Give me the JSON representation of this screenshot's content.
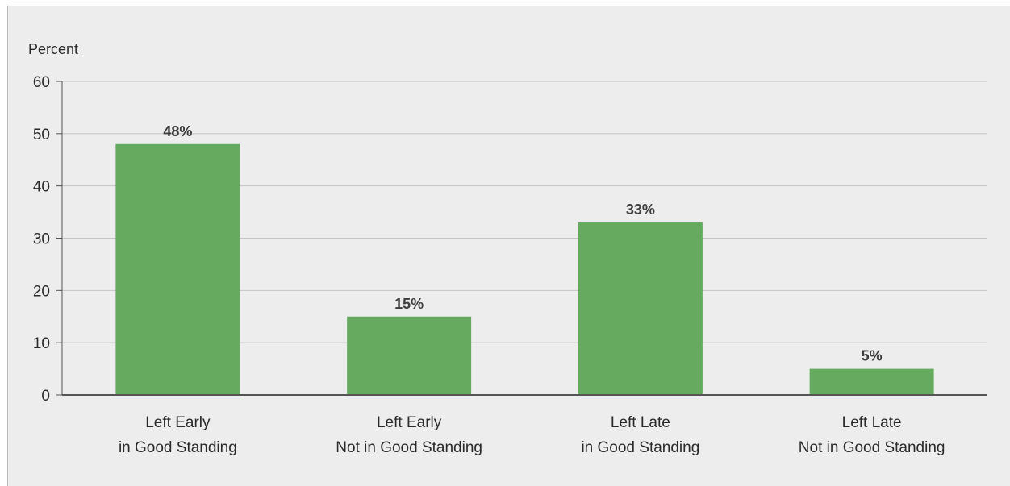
{
  "chart_data": {
    "type": "bar",
    "ylabel": "Percent",
    "xlabel": "",
    "title": "",
    "ylim": [
      0,
      60
    ],
    "yticks": [
      0,
      10,
      20,
      30,
      40,
      50,
      60
    ],
    "grid": true,
    "categories": [
      [
        "Left Early",
        "in Good Standing"
      ],
      [
        "Left Early",
        "Not in Good Standing"
      ],
      [
        "Left Late",
        "in Good Standing"
      ],
      [
        "Left Late",
        "Not in Good Standing"
      ]
    ],
    "values": [
      48,
      15,
      33,
      5
    ],
    "data_labels": [
      "48%",
      "15%",
      "33%",
      "5%"
    ],
    "colors": {
      "bar": "#66aa5f",
      "grid": "#c4c4c4",
      "axis": "#555555",
      "background": "#ededed"
    }
  }
}
